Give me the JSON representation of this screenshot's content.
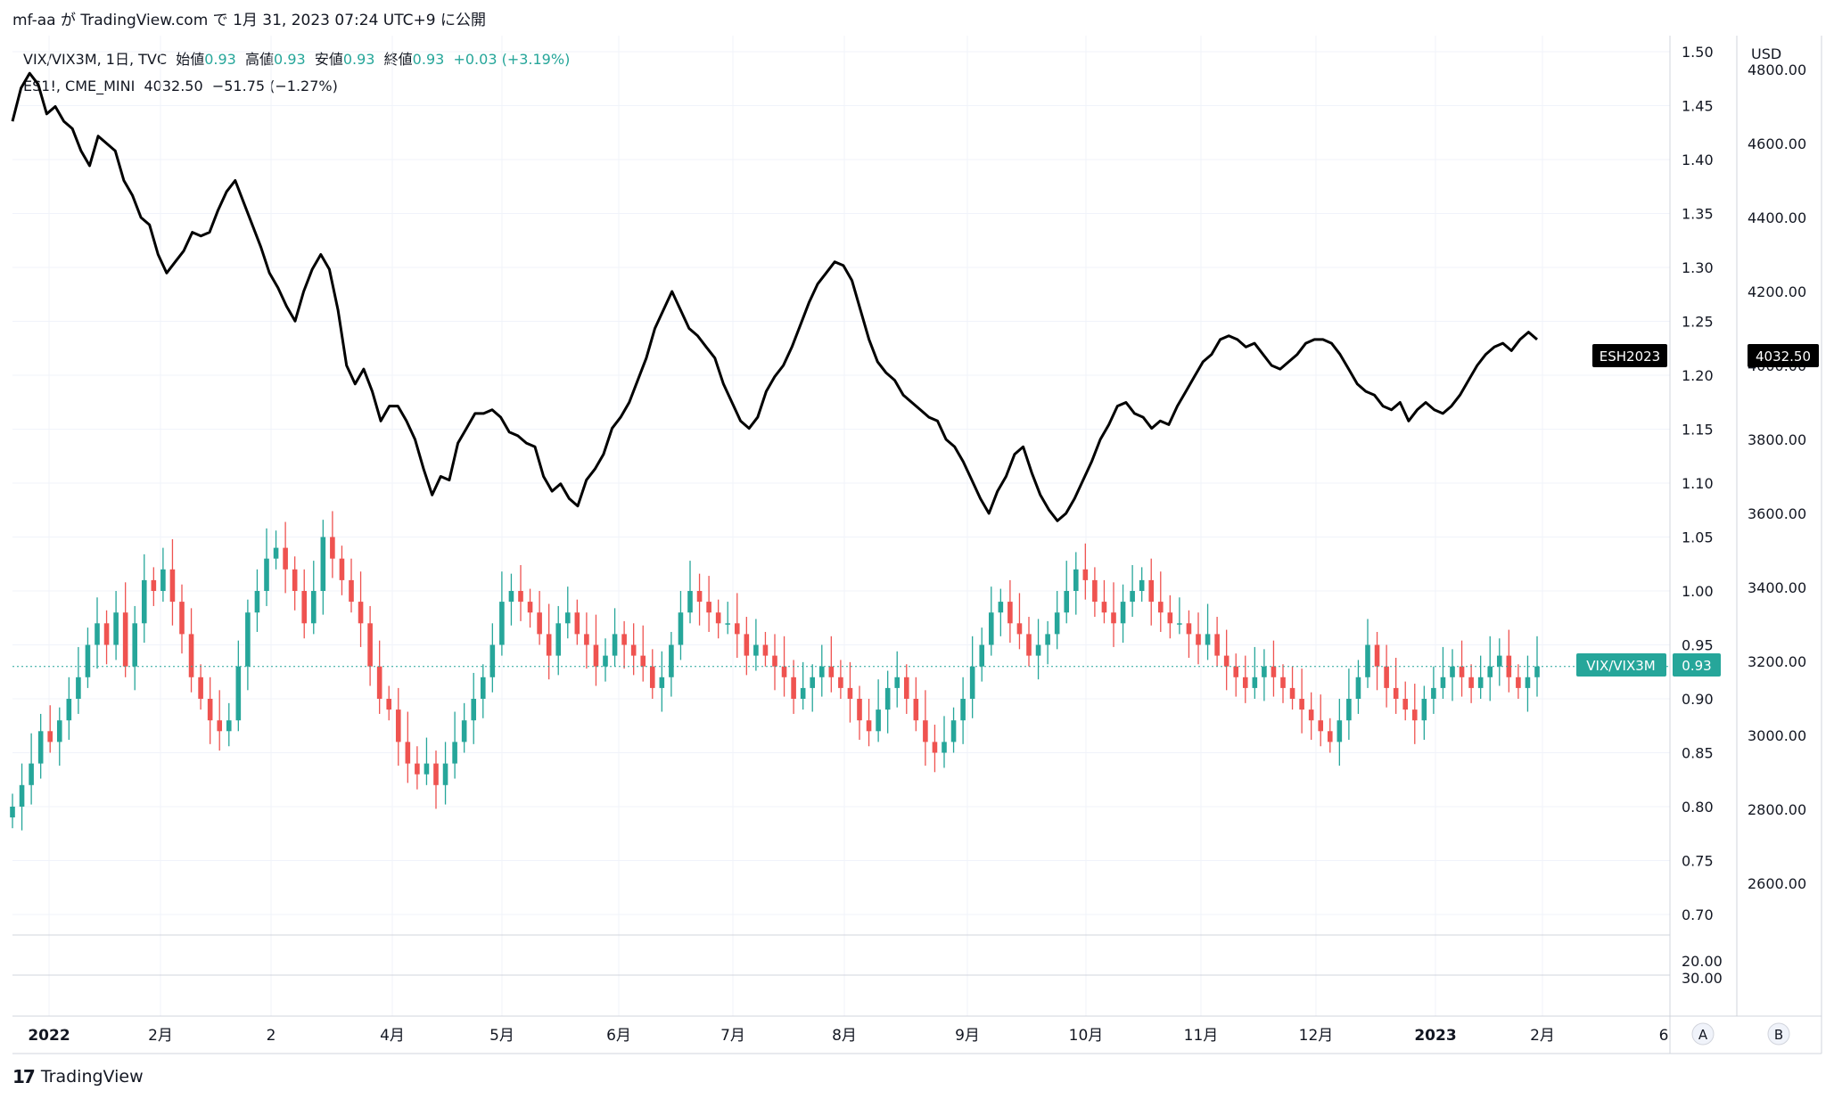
{
  "header": {
    "text": "mf-aa が TradingView.com で 1月 31, 2023 07:24 UTC+9 に公開"
  },
  "legend": {
    "main": {
      "symbol": "VIX/VIX3M, 1日, TVC",
      "open_label": "始値",
      "open": "0.93",
      "high_label": "高値",
      "high": "0.93",
      "low_label": "安値",
      "low": "0.93",
      "close_label": "終値",
      "close": "0.93",
      "change": "+0.03 (+3.19%)"
    },
    "overlay": {
      "symbol": "ES1!, CME_MINI",
      "price": "4032.50",
      "change": "−51.75 (−1.27%)"
    }
  },
  "currency": "USD",
  "footer": {
    "brand": "TradingView"
  },
  "scale_buttons": [
    "A",
    "B"
  ],
  "price_labels": {
    "es_name": "ESH2023",
    "es_value": "4032.50",
    "vix_name": "VIX/VIX3M",
    "vix_value": "0.93"
  },
  "colors": {
    "up": "#26a69a",
    "down": "#ef5350",
    "line": "#000000",
    "grid": "#f0f3fa"
  },
  "chart_data": {
    "type": "line",
    "x_ticks": [
      "2022",
      "2月",
      "2",
      "4月",
      "5月",
      "6月",
      "7月",
      "8月",
      "9月",
      "10月",
      "11月",
      "12月",
      "2023",
      "2月",
      "6"
    ],
    "left_axis_ticks": [
      "1.50",
      "1.45",
      "1.40",
      "1.35",
      "1.30",
      "1.25",
      "1.20",
      "1.15",
      "1.10",
      "1.05",
      "1.00",
      "0.95",
      "0.90",
      "0.85",
      "0.80",
      "0.75",
      "0.70"
    ],
    "left_ylim": [
      0.68,
      1.52
    ],
    "right_axis_ticks": [
      "4800.00",
      "4600.00",
      "4400.00",
      "4200.00",
      "4000.00",
      "3800.00",
      "3600.00",
      "3400.00",
      "3200.00",
      "3000.00",
      "2800.00",
      "2600.00"
    ],
    "right_ylim": [
      2400,
      4800
    ],
    "sub_axis_ticks": [
      "20.00",
      "30.00"
    ],
    "series": [
      {
        "name": "ES1!",
        "values": [
          4660,
          4750,
          4790,
          4760,
          4680,
          4700,
          4660,
          4640,
          4580,
          4540,
          4620,
          4600,
          4580,
          4500,
          4460,
          4400,
          4380,
          4300,
          4250,
          4280,
          4310,
          4360,
          4350,
          4360,
          4420,
          4470,
          4500,
          4440,
          4380,
          4320,
          4250,
          4210,
          4160,
          4120,
          4200,
          4260,
          4300,
          4260,
          4150,
          4000,
          3950,
          3990,
          3930,
          3850,
          3890,
          3890,
          3850,
          3800,
          3720,
          3650,
          3700,
          3690,
          3790,
          3830,
          3870,
          3870,
          3880,
          3860,
          3820,
          3810,
          3790,
          3780,
          3700,
          3660,
          3680,
          3640,
          3620,
          3690,
          3720,
          3760,
          3830,
          3860,
          3900,
          3960,
          4020,
          4100,
          4150,
          4200,
          4150,
          4100,
          4080,
          4050,
          4020,
          3950,
          3900,
          3850,
          3830,
          3860,
          3930,
          3970,
          4000,
          4050,
          4110,
          4170,
          4220,
          4250,
          4280,
          4270,
          4230,
          4150,
          4070,
          4010,
          3980,
          3960,
          3920,
          3900,
          3880,
          3860,
          3850,
          3800,
          3780,
          3740,
          3690,
          3640,
          3600,
          3660,
          3700,
          3760,
          3780,
          3710,
          3650,
          3610,
          3580,
          3600,
          3640,
          3690,
          3740,
          3800,
          3840,
          3890,
          3900,
          3870,
          3860,
          3830,
          3850,
          3840,
          3890,
          3930,
          3970,
          4010,
          4030,
          4070,
          4080,
          4070,
          4050,
          4060,
          4030,
          4000,
          3990,
          4010,
          4030,
          4060,
          4070,
          4070,
          4060,
          4030,
          3990,
          3950,
          3930,
          3920,
          3890,
          3880,
          3900,
          3850,
          3880,
          3900,
          3880,
          3870,
          3890,
          3920,
          3960,
          4000,
          4030,
          4050,
          4060,
          4040,
          4070,
          4090,
          4070
        ]
      },
      {
        "name": "VIX/VIX3M",
        "values": [
          0.8,
          0.82,
          0.84,
          0.87,
          0.86,
          0.88,
          0.9,
          0.92,
          0.95,
          0.97,
          0.95,
          0.98,
          0.93,
          0.97,
          1.01,
          1.0,
          1.02,
          0.99,
          0.96,
          0.92,
          0.9,
          0.88,
          0.87,
          0.88,
          0.93,
          0.98,
          1.0,
          1.03,
          1.04,
          1.02,
          1.0,
          0.97,
          1.0,
          1.05,
          1.03,
          1.01,
          0.99,
          0.97,
          0.93,
          0.9,
          0.89,
          0.86,
          0.84,
          0.83,
          0.84,
          0.82,
          0.84,
          0.86,
          0.88,
          0.9,
          0.92,
          0.95,
          0.99,
          1.0,
          0.99,
          0.98,
          0.96,
          0.94,
          0.97,
          0.98,
          0.96,
          0.95,
          0.93,
          0.94,
          0.96,
          0.95,
          0.94,
          0.93,
          0.91,
          0.92,
          0.95,
          0.98,
          1.0,
          0.99,
          0.98,
          0.97,
          0.97,
          0.96,
          0.94,
          0.95,
          0.94,
          0.93,
          0.92,
          0.9,
          0.91,
          0.92,
          0.93,
          0.92,
          0.91,
          0.9,
          0.88,
          0.87,
          0.89,
          0.91,
          0.92,
          0.9,
          0.88,
          0.86,
          0.85,
          0.86,
          0.88,
          0.9,
          0.93,
          0.95,
          0.98,
          0.99,
          0.97,
          0.96,
          0.94,
          0.95,
          0.96,
          0.98,
          1.0,
          1.02,
          1.01,
          0.99,
          0.98,
          0.97,
          0.99,
          1.0,
          1.01,
          0.99,
          0.98,
          0.97,
          0.97,
          0.96,
          0.95,
          0.96,
          0.94,
          0.93,
          0.92,
          0.91,
          0.92,
          0.93,
          0.92,
          0.91,
          0.9,
          0.89,
          0.88,
          0.87,
          0.86,
          0.88,
          0.9,
          0.92,
          0.95,
          0.93,
          0.91,
          0.9,
          0.89,
          0.88,
          0.9,
          0.91,
          0.92,
          0.93,
          0.92,
          0.91,
          0.92,
          0.93,
          0.94,
          0.92,
          0.91,
          0.92,
          0.93
        ]
      }
    ]
  }
}
